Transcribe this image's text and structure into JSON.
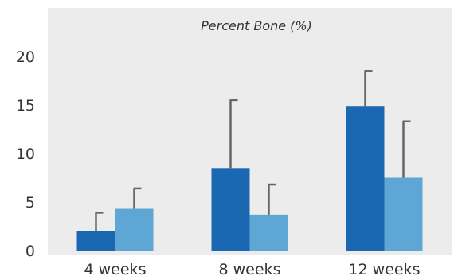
{
  "chart_data": {
    "type": "bar",
    "title": "Percent Bone (%)",
    "xlabel": "",
    "ylabel": "",
    "categories": [
      "4 weeks",
      "8 weeks",
      "12 weeks"
    ],
    "series": [
      {
        "values": [
          2.0,
          8.5,
          14.9
        ],
        "errors": [
          1.9,
          7.0,
          3.6
        ],
        "color": "#1a67b2"
      },
      {
        "values": [
          4.3,
          3.7,
          7.5
        ],
        "errors": [
          2.1,
          3.1,
          5.8
        ],
        "color": "#5ea6d4"
      }
    ],
    "yticks": [
      0,
      5,
      10,
      15,
      20
    ],
    "ylim": [
      0,
      23
    ],
    "grid": false,
    "background": "#ececec",
    "error_bar_color": "#666666"
  }
}
